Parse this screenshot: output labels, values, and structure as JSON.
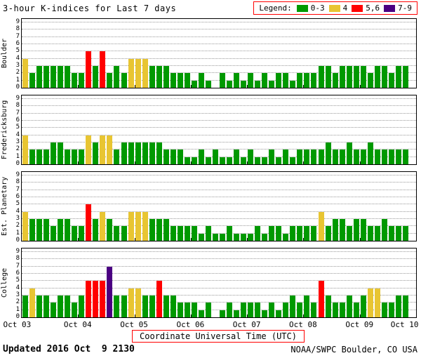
{
  "header": {
    "legend_label": "Legend:",
    "legend_entries": [
      {
        "label": "0-3",
        "color": "#009900"
      },
      {
        "label": "4",
        "color": "#e8c532"
      },
      {
        "label": "5,6",
        "color": "#ff0000"
      },
      {
        "label": "7-9",
        "color": "#4b0082"
      }
    ]
  },
  "footer": {
    "updated_label": "Updated",
    "updated_value": "2016 Oct  9 2130",
    "credit": "NOAA/SWPC Boulder, CO USA"
  },
  "chart_data": {
    "type": "bar",
    "title": "3-hour K-indices for Last 7 days",
    "xlabel": "Coordinate Universal Time (UTC)",
    "ylim": [
      0,
      9
    ],
    "grid": true,
    "x_tick_labels": [
      "Oct 03",
      "Oct 04",
      "Oct 05",
      "Oct 06",
      "Oct 07",
      "Oct 08",
      "Oct 09",
      "Oct 10"
    ],
    "bars_per_day": 8,
    "bar_interval_hours": 3,
    "colors": {
      "green": "#009900",
      "yellow": "#e8c532",
      "red": "#ff0000",
      "purple": "#4b0082"
    },
    "color_rules": {
      "green": "0-3",
      "yellow": "4",
      "red": "5,6",
      "purple": "7-9"
    },
    "panels": [
      {
        "station": "Boulder",
        "values": [
          4,
          2,
          3,
          3,
          3,
          3,
          3,
          2,
          2,
          5,
          3,
          5,
          2,
          3,
          2,
          4,
          4,
          4,
          3,
          3,
          3,
          2,
          2,
          2,
          1,
          2,
          1,
          0,
          2,
          1,
          2,
          1,
          2,
          1,
          2,
          1,
          2,
          2,
          1,
          2,
          2,
          2,
          3,
          3,
          2,
          3,
          3,
          3,
          3,
          2,
          3,
          3,
          2,
          3,
          3
        ]
      },
      {
        "station": "Fredericksburg",
        "values": [
          4,
          2,
          2,
          2,
          3,
          3,
          2,
          2,
          2,
          4,
          3,
          4,
          4,
          2,
          3,
          3,
          3,
          3,
          3,
          3,
          2,
          2,
          2,
          1,
          1,
          2,
          1,
          2,
          1,
          1,
          2,
          1,
          2,
          1,
          1,
          2,
          1,
          2,
          1,
          2,
          2,
          2,
          2,
          3,
          2,
          2,
          3,
          2,
          2,
          3,
          2,
          2,
          2,
          2,
          2
        ]
      },
      {
        "station": "Est. Planetary",
        "values": [
          4,
          3,
          3,
          3,
          2,
          3,
          3,
          2,
          2,
          5,
          3,
          4,
          3,
          2,
          2,
          4,
          4,
          4,
          3,
          3,
          3,
          2,
          2,
          2,
          2,
          1,
          2,
          1,
          1,
          2,
          1,
          1,
          1,
          2,
          1,
          2,
          2,
          1,
          2,
          2,
          2,
          2,
          4,
          2,
          3,
          3,
          2,
          3,
          3,
          2,
          2,
          3,
          2,
          2,
          2
        ]
      },
      {
        "station": "College",
        "values": [
          3,
          4,
          3,
          3,
          2,
          3,
          3,
          2,
          3,
          5,
          5,
          5,
          7,
          3,
          3,
          4,
          4,
          3,
          3,
          5,
          3,
          3,
          2,
          2,
          2,
          1,
          2,
          0,
          1,
          2,
          1,
          2,
          2,
          2,
          1,
          2,
          1,
          2,
          3,
          2,
          3,
          2,
          5,
          3,
          2,
          2,
          3,
          2,
          3,
          4,
          4,
          2,
          2,
          3,
          3
        ]
      }
    ]
  }
}
